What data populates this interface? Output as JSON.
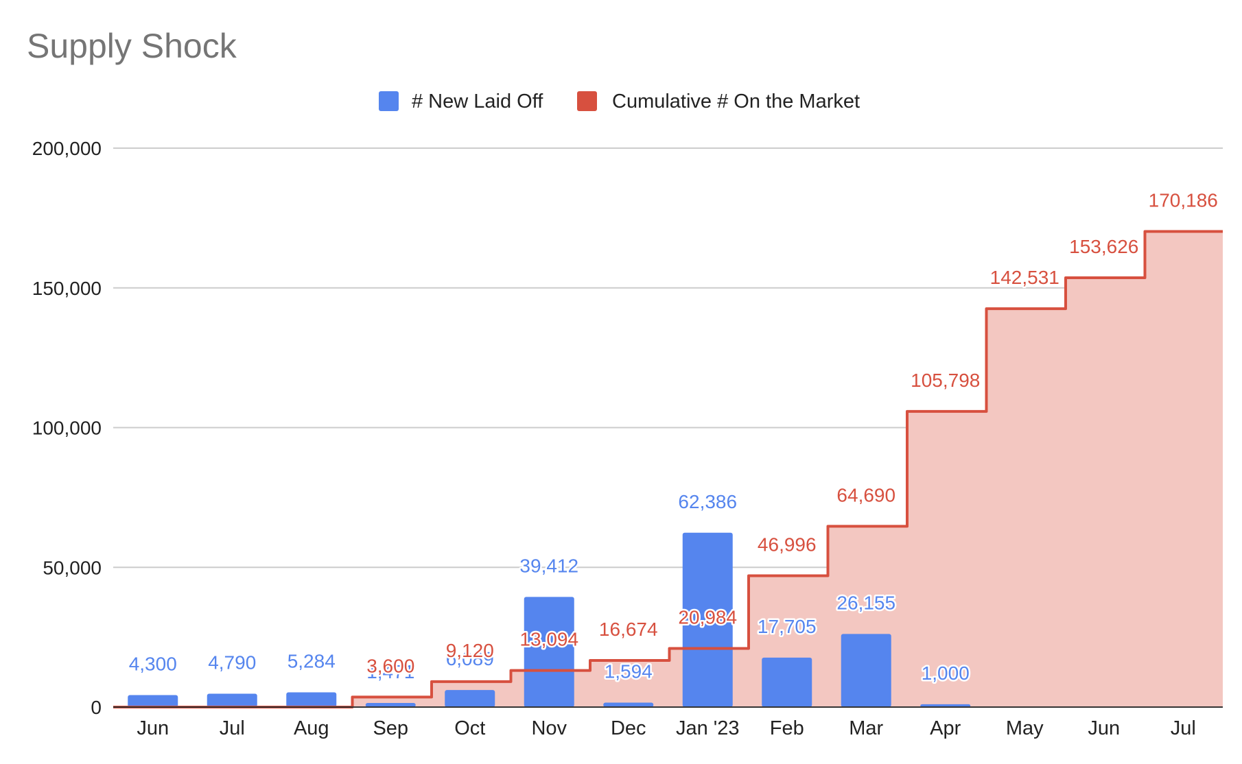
{
  "chart_data": {
    "type": "bar+stepped-area",
    "title": "Supply Shock",
    "categories": [
      "Jun",
      "Jul",
      "Aug",
      "Sep",
      "Oct",
      "Nov",
      "Dec",
      "Jan '23",
      "Feb",
      "Mar",
      "Apr",
      "May",
      "Jun",
      "Jul"
    ],
    "series": [
      {
        "name": "# New Laid Off",
        "type": "bar",
        "color": "#5585ee",
        "values": [
          4300,
          4790,
          5284,
          1471,
          6089,
          39412,
          1594,
          62386,
          17705,
          26155,
          1000,
          null,
          null,
          null
        ],
        "labels": [
          "4,300",
          "4,790",
          "5,284",
          "1,471",
          "6,089",
          "39,412",
          "1,594",
          "62,386",
          "17,705",
          "26,155",
          "1,000",
          "",
          "",
          ""
        ]
      },
      {
        "name": "Cumulative # On the Market",
        "type": "stepped-area",
        "color": "#d7503f",
        "fill": "#f3c7c1",
        "values": [
          0,
          0,
          0,
          3600,
          9120,
          13094,
          16674,
          20984,
          46996,
          64690,
          105798,
          142531,
          153626,
          170186
        ],
        "labels": [
          "",
          "",
          "",
          "3,600",
          "9,120",
          "13,094",
          "16,674",
          "20,984",
          "46,996",
          "64,690",
          "105,798",
          "142,531",
          "153,626",
          "170,186"
        ]
      }
    ],
    "y_ticks": [
      {
        "value": 0,
        "label": "0"
      },
      {
        "value": 50000,
        "label": "50,000"
      },
      {
        "value": 100000,
        "label": "100,000"
      },
      {
        "value": 150000,
        "label": "150,000"
      },
      {
        "value": 200000,
        "label": "200,000"
      }
    ],
    "ylim": [
      0,
      200000
    ],
    "xlabel": "",
    "ylabel": "",
    "grid": true,
    "legend_position": "top-center"
  }
}
